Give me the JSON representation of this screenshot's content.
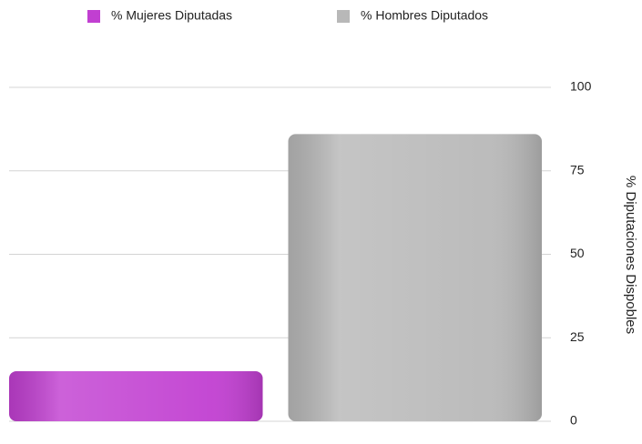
{
  "chart_data": {
    "type": "bar",
    "categories": [
      null
    ],
    "series": [
      {
        "name": "% Mujeres Diputadas",
        "color": "#c13fd1",
        "values": [
          15
        ]
      },
      {
        "name": "% Hombres Diputados",
        "color": "#b8b8b8",
        "values": [
          86
        ]
      }
    ],
    "y_label": "% Diputaciones Dispobles",
    "ylim": [
      0,
      100
    ],
    "yticks": [
      0,
      25,
      50,
      75,
      100
    ],
    "grid": true,
    "legend": "top"
  }
}
